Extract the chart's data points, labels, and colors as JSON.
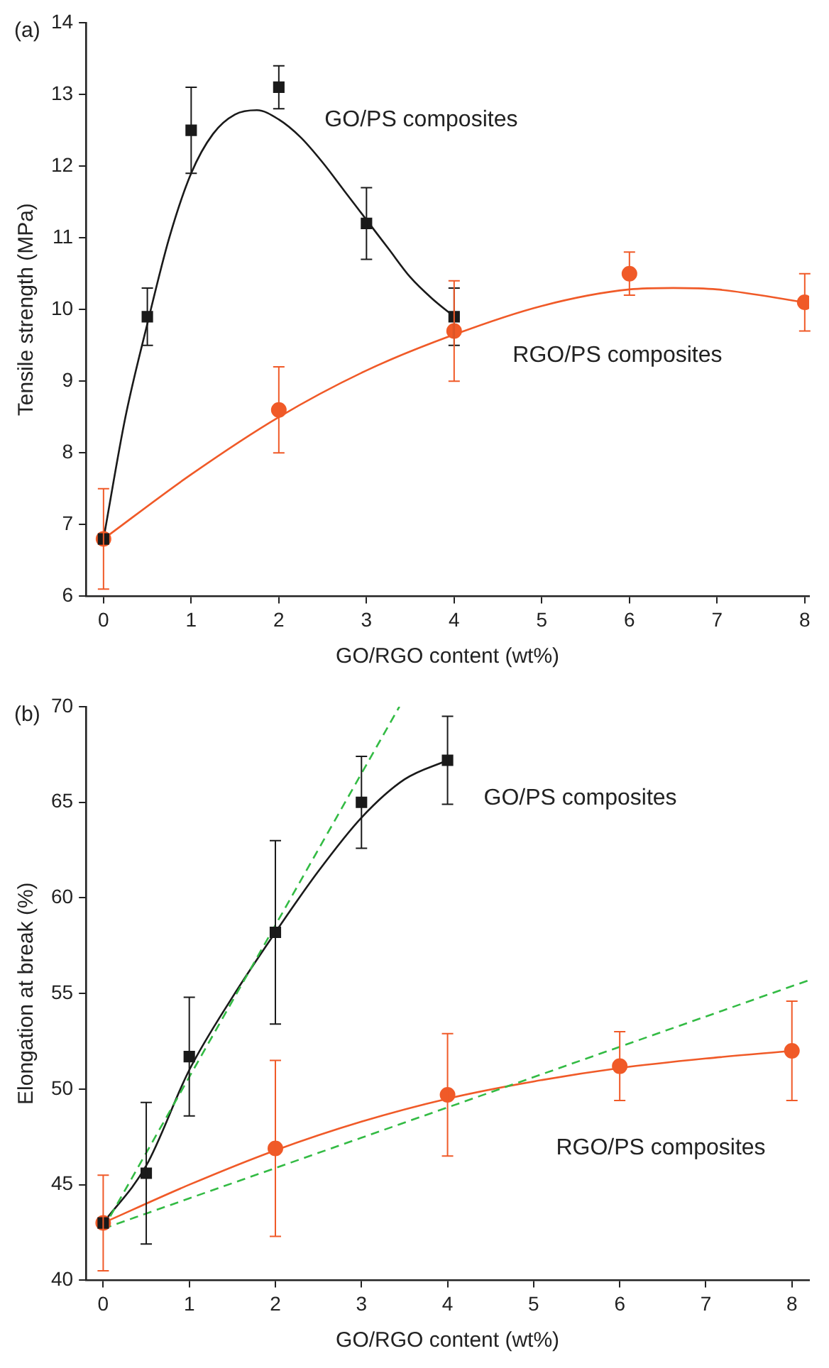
{
  "chart_data": [
    {
      "type": "scatter",
      "xlabel": "GO/RGO content (wt%)",
      "ylabel": "Tensile strength (MPa)",
      "xlim": [
        -0.2,
        8.05
      ],
      "ylim": [
        6,
        14
      ],
      "xticks": [
        0,
        1,
        2,
        3,
        4,
        5,
        6,
        7,
        8
      ],
      "yticks": [
        6,
        7,
        8,
        9,
        10,
        11,
        12,
        13,
        14
      ],
      "grid": false,
      "legend": false,
      "series": [
        {
          "type": "line",
          "color": "#1a1a1a",
          "marker": "none",
          "line_style": "solid",
          "x": [
            0,
            0.25,
            0.5,
            0.75,
            1,
            1.25,
            1.5,
            1.75,
            2,
            2.25,
            2.5,
            2.75,
            3,
            3.25,
            3.5,
            3.75,
            4
          ],
          "values": [
            6.8,
            8.5,
            9.8,
            11.0,
            11.9,
            12.45,
            12.72,
            12.78,
            12.65,
            12.4,
            12.05,
            11.65,
            11.25,
            10.85,
            10.45,
            10.15,
            9.9
          ]
        },
        {
          "type": "line",
          "color": "#f05a28",
          "marker": "none",
          "line_style": "solid",
          "x": [
            0,
            1,
            2,
            3,
            4,
            5,
            6,
            6.5,
            7,
            8
          ],
          "values": [
            6.8,
            7.7,
            8.5,
            9.15,
            9.65,
            10.05,
            10.28,
            10.3,
            10.28,
            10.1
          ]
        },
        {
          "color": "#1a1a1a",
          "marker": "square",
          "x": [
            0,
            0.5,
            1,
            2,
            3,
            4
          ],
          "values": [
            6.8,
            9.9,
            12.5,
            13.1,
            11.2,
            9.9
          ],
          "errors": [
            null,
            0.4,
            0.6,
            0.3,
            0.5,
            0.4
          ]
        },
        {
          "color": "#f05a28",
          "marker": "circle",
          "x": [
            0,
            2,
            4,
            6,
            8
          ],
          "values": [
            6.8,
            8.6,
            9.7,
            10.5,
            10.1
          ],
          "errors": [
            0.7,
            0.6,
            0.7,
            0.3,
            0.4
          ]
        }
      ],
      "annotations": [
        "(a)",
        "GO/PS composites",
        "RGO/PS composites"
      ]
    },
    {
      "type": "scatter",
      "xlabel": "GO/RGO content (wt%)",
      "ylabel": "Elongation at break (%)",
      "xlim": [
        -0.2,
        8.2
      ],
      "ylim": [
        40,
        70
      ],
      "xticks": [
        0,
        1,
        2,
        3,
        4,
        5,
        6,
        7,
        8
      ],
      "yticks": [
        40,
        45,
        50,
        55,
        60,
        65,
        70
      ],
      "grid": false,
      "legend": false,
      "series": [
        {
          "type": "line",
          "color": "#33bb44",
          "marker": "none",
          "line_style": "dashed",
          "x": [
            0,
            3.44
          ],
          "values": [
            42.7,
            70
          ]
        },
        {
          "type": "line",
          "color": "#33bb44",
          "marker": "none",
          "line_style": "dashed",
          "x": [
            0,
            8.2
          ],
          "values": [
            42.7,
            55.7
          ]
        },
        {
          "type": "line",
          "color": "#1a1a1a",
          "marker": "none",
          "line_style": "solid",
          "x": [
            0,
            0.5,
            1,
            1.5,
            2,
            2.5,
            3,
            3.5,
            4
          ],
          "values": [
            43,
            46,
            51,
            54.8,
            58.2,
            61.4,
            64.2,
            66.2,
            67.2
          ]
        },
        {
          "type": "line",
          "color": "#f05a28",
          "marker": "none",
          "line_style": "solid",
          "x": [
            0,
            1,
            2,
            3,
            4,
            5,
            6,
            7,
            8
          ],
          "values": [
            43,
            45,
            46.8,
            48.3,
            49.5,
            50.4,
            51.1,
            51.6,
            52
          ]
        },
        {
          "color": "#1a1a1a",
          "marker": "square",
          "x": [
            0,
            0.5,
            1,
            2,
            3,
            4
          ],
          "values": [
            43,
            45.6,
            51.7,
            58.2,
            65.0,
            67.2
          ],
          "errors": [
            null,
            3.7,
            3.1,
            4.8,
            2.4,
            2.3
          ]
        },
        {
          "color": "#f05a28",
          "marker": "circle",
          "x": [
            0,
            2,
            4,
            6,
            8
          ],
          "values": [
            43,
            46.9,
            49.7,
            51.2,
            52.0
          ],
          "errors": [
            2.5,
            4.6,
            3.2,
            1.8,
            2.6
          ]
        }
      ],
      "annotations": [
        "(b)",
        "GO/PS composites",
        "RGO/PS composites"
      ]
    }
  ]
}
